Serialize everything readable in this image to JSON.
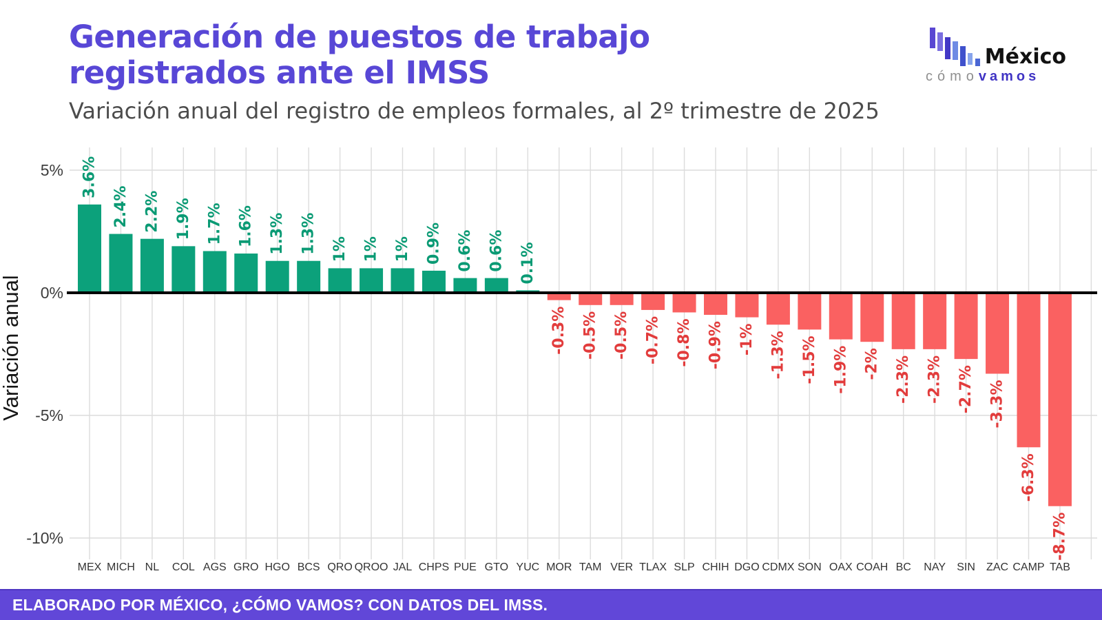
{
  "header": {
    "title": "Generación de puestos de trabajo registrados ante el IMSS",
    "subtitle": "Variación anual del registro de empleos formales, al 2º trimestre de 2025"
  },
  "logo": {
    "name_text": "México",
    "tagline_left": "cómo",
    "tagline_right": "vamos"
  },
  "footer": {
    "text": "ELABORADO POR MÉXICO, ¿CÓMO VAMOS? CON DATOS DEL IMSS."
  },
  "chart_data": {
    "type": "bar",
    "title": "Generación de puestos de trabajo registrados ante el IMSS",
    "subtitle": "Variación anual del registro de empleos formales, al 2º trimestre de 2025",
    "xlabel": "",
    "ylabel": "Variación anual",
    "categories": [
      "MEX",
      "MICH",
      "NL",
      "COL",
      "AGS",
      "GRO",
      "HGO",
      "BCS",
      "QRO",
      "QROO",
      "JAL",
      "CHPS",
      "PUE",
      "GTO",
      "YUC",
      "MOR",
      "TAM",
      "VER",
      "TLAX",
      "SLP",
      "CHIH",
      "DGO",
      "CDMX",
      "SON",
      "OAX",
      "COAH",
      "BC",
      "NAY",
      "SIN",
      "ZAC",
      "CAMP",
      "TAB"
    ],
    "values": [
      3.6,
      2.4,
      2.2,
      1.9,
      1.7,
      1.6,
      1.3,
      1.3,
      1.0,
      1.0,
      1.0,
      0.9,
      0.6,
      0.6,
      0.1,
      -0.3,
      -0.5,
      -0.5,
      -0.7,
      -0.8,
      -0.9,
      -1.0,
      -1.3,
      -1.5,
      -1.9,
      -2.0,
      -2.3,
      -2.3,
      -2.7,
      -3.3,
      -6.3,
      -8.7
    ],
    "value_labels": [
      "3.6%",
      "2.4%",
      "2.2%",
      "1.9%",
      "1.7%",
      "1.6%",
      "1.3%",
      "1.3%",
      "1%",
      "1%",
      "1%",
      "0.9%",
      "0.6%",
      "0.6%",
      "0.1%",
      "-0.3%",
      "-0.5%",
      "-0.5%",
      "-0.7%",
      "-0.8%",
      "-0.9%",
      "-1%",
      "-1.3%",
      "-1.5%",
      "-1.9%",
      "-2%",
      "-2.3%",
      "-2.3%",
      "-2.7%",
      "-3.3%",
      "-6.3%",
      "-8.7%"
    ],
    "yticks": {
      "values": [
        5,
        0,
        -5,
        -10
      ],
      "labels": [
        "5%",
        "0%",
        "-5%",
        "-10%"
      ]
    },
    "ylim": [
      -10.9,
      5.9
    ],
    "grid": true,
    "legend": "none",
    "colors": {
      "positive": "#0ca17b",
      "negative": "#fa6161",
      "positive_label": "#0a9a74",
      "negative_label": "#e23c3c",
      "axis": "#000000",
      "grid": "#dcdcdc",
      "tick_text": "#3d3d3d",
      "axis_title": "#161616",
      "title": "#5847d6",
      "subtitle": "#4c4c4c",
      "footer_bg": "#6147d8"
    }
  }
}
